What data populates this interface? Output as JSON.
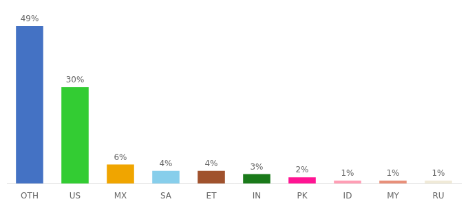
{
  "chart_data": {
    "type": "bar",
    "categories": [
      "OTH",
      "US",
      "MX",
      "SA",
      "ET",
      "IN",
      "PK",
      "ID",
      "MY",
      "RU"
    ],
    "values": [
      49,
      30,
      6,
      4,
      4,
      3,
      2,
      1,
      1,
      1
    ],
    "value_labels": [
      "49%",
      "30%",
      "6%",
      "4%",
      "4%",
      "3%",
      "2%",
      "1%",
      "1%",
      "1%"
    ],
    "colors": [
      "#4472c4",
      "#33cc33",
      "#f0a500",
      "#87ceeb",
      "#a0522d",
      "#1a7a1a",
      "#ff1493",
      "#ff9eb5",
      "#e8907a",
      "#f0ead8"
    ],
    "ylim": [
      0,
      52
    ],
    "grid": false,
    "data_labels": true,
    "tick_labels": "x"
  }
}
